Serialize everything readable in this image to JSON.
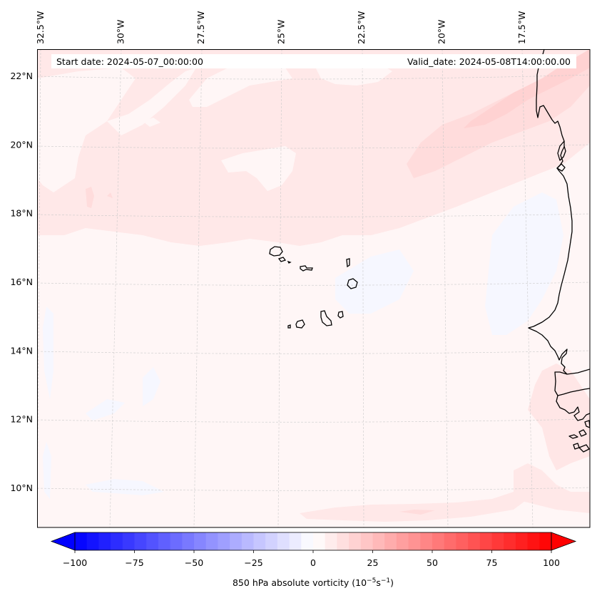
{
  "chart_data": {
    "type": "heatmap",
    "title": "",
    "variable": "850 hPa absolute vorticity",
    "units_label_parts": {
      "base": "850 hPa absolute vorticity (10",
      "exp1": "−5",
      "mid": "s",
      "exp2": "−1",
      "end": ")"
    },
    "start_date_label": "Start date: 2024-05-07_00:00:00",
    "valid_date_label": "Valid_date: 2024-05-08T14:00:00.00",
    "xlim_lon": [
      -33.0,
      -15.0
    ],
    "ylim_lat": [
      8.7,
      22.8
    ],
    "lon_ticks": [
      {
        "value": -32.5,
        "label": "32.5°W"
      },
      {
        "value": -30.0,
        "label": "30°W"
      },
      {
        "value": -27.5,
        "label": "27.5°W"
      },
      {
        "value": -25.0,
        "label": "25°W"
      },
      {
        "value": -22.5,
        "label": "22.5°W"
      },
      {
        "value": -20.0,
        "label": "20°W"
      },
      {
        "value": -17.5,
        "label": "17.5°W"
      }
    ],
    "lat_ticks": [
      {
        "value": 22,
        "label": "22°N"
      },
      {
        "value": 20,
        "label": "20°N"
      },
      {
        "value": 18,
        "label": "18°N"
      },
      {
        "value": 16,
        "label": "16°N"
      },
      {
        "value": 14,
        "label": "14°N"
      },
      {
        "value": 12,
        "label": "12°N"
      },
      {
        "value": 10,
        "label": "10°N"
      }
    ],
    "gridlines": true,
    "colorbar": {
      "cmap": "bwr",
      "vmin": -100,
      "vmax": 100,
      "step": 5,
      "extend": "both",
      "orientation": "horizontal",
      "placement": "bottom",
      "ticks": [
        {
          "value": -100,
          "label": "−100"
        },
        {
          "value": -75,
          "label": "−75"
        },
        {
          "value": -50,
          "label": "−50"
        },
        {
          "value": -25,
          "label": "−25"
        },
        {
          "value": 0,
          "label": "0"
        },
        {
          "value": 25,
          "label": "25"
        },
        {
          "value": 50,
          "label": "50"
        },
        {
          "value": 75,
          "label": "75"
        },
        {
          "value": 100,
          "label": "100"
        }
      ]
    },
    "field_description": "Mostly weak positive vorticity (0–10) over ocean; a band of 10–15 stretching SW–NE across north of domain; near-zero/slightly negative patches near 14–18°N off the African coast; a weak positive streak along ~9°N.",
    "field_regions": [
      {
        "name": "background",
        "value": 2
      },
      {
        "name": "northern-band",
        "value": 8
      },
      {
        "name": "ne-strong-band",
        "value": 12
      },
      {
        "name": "white-patches",
        "value": 1
      },
      {
        "name": "negative-patches",
        "value": -2
      },
      {
        "name": "southern-streak",
        "value": 7
      },
      {
        "name": "coastal-band",
        "value": 7
      }
    ],
    "features": {
      "islands": "Cape Verde Islands (~14.8–17.2°N, 22.7–25.4°W)",
      "coastline": "West African coast (Western Sahara, Mauritania, Senegal, Gambia, Guinea-Bissau)"
    }
  }
}
